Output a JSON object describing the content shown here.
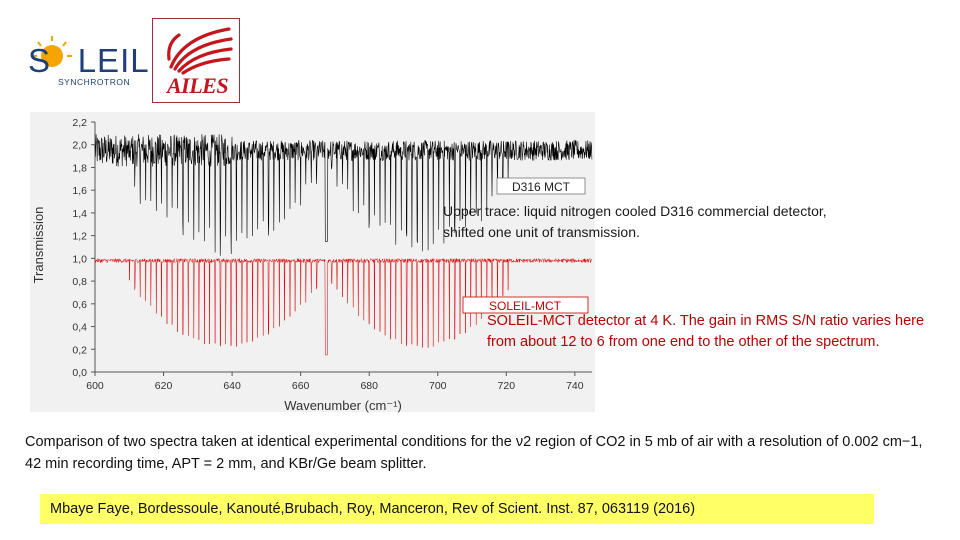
{
  "logos": {
    "soleil": {
      "word": "SOLEIL",
      "sub": "SYNCHROTRON",
      "color": "#1f3f7a",
      "sun": "#f5a400"
    },
    "ailes": {
      "word": "AILES",
      "color": "#c4161c"
    }
  },
  "chart_data": {
    "type": "line",
    "xlabel": "Wavenumber (cm⁻¹)",
    "ylabel": "Transmission",
    "xlim": [
      600,
      750
    ],
    "ylim": [
      0.0,
      2.2
    ],
    "x_ticks": [
      600,
      620,
      640,
      660,
      680,
      700,
      720,
      740
    ],
    "y_ticks": [
      0.0,
      0.2,
      0.4,
      0.6,
      0.8,
      1.0,
      1.2,
      1.4,
      1.6,
      1.8,
      2.0,
      2.2
    ],
    "x_tick_labels": [
      "600",
      "620",
      "640",
      "660",
      "680",
      "700",
      "720",
      "740"
    ],
    "y_tick_labels": [
      "0,0",
      "0,2",
      "0,4",
      "0,6",
      "0,8",
      "1,0",
      "1,2",
      "1,4",
      "1,6",
      "1,8",
      "2,0",
      "2,2"
    ],
    "series": [
      {
        "name": "D316 MCT",
        "color": "#000000",
        "baseline": 1.95,
        "noise": 0.09,
        "line_depth_max": 0.8,
        "q_branch": {
          "x": 667.5,
          "y": 1.15
        }
      },
      {
        "name": "SOLEIL-MCT",
        "color": "#e00000",
        "baseline": 0.98,
        "noise": 0.018,
        "line_depth_max": 0.75,
        "q_branch": {
          "x": 667.5,
          "y": 0.15
        }
      }
    ],
    "band": {
      "center": 667,
      "p_branch": [
        610,
        666
      ],
      "r_branch": [
        669,
        722
      ],
      "line_spacing": 1.56
    }
  },
  "captions": {
    "upper": "Upper trace: liquid nitrogen cooled D316 commercial detector, shifted one unit of transmission.",
    "lower": "SOLEIL-MCT detector at 4 K. The gain in RMS S/N ratio varies here from about 12 to 6 from one end to the other of the spectrum.",
    "main": "Comparison of two spectra taken at identical experimental conditions for the ν2 region of CO2 in 5 mb of air with a resolution of 0.002 cm−1, 42 min recording time, APT = 2 mm, and KBr/Ge beam splitter."
  },
  "citation": "Mbaye Faye, Bordessoule, Kanouté,Brubach, Roy, Manceron, Rev of Scient. Inst. 87, 063119 (2016)"
}
